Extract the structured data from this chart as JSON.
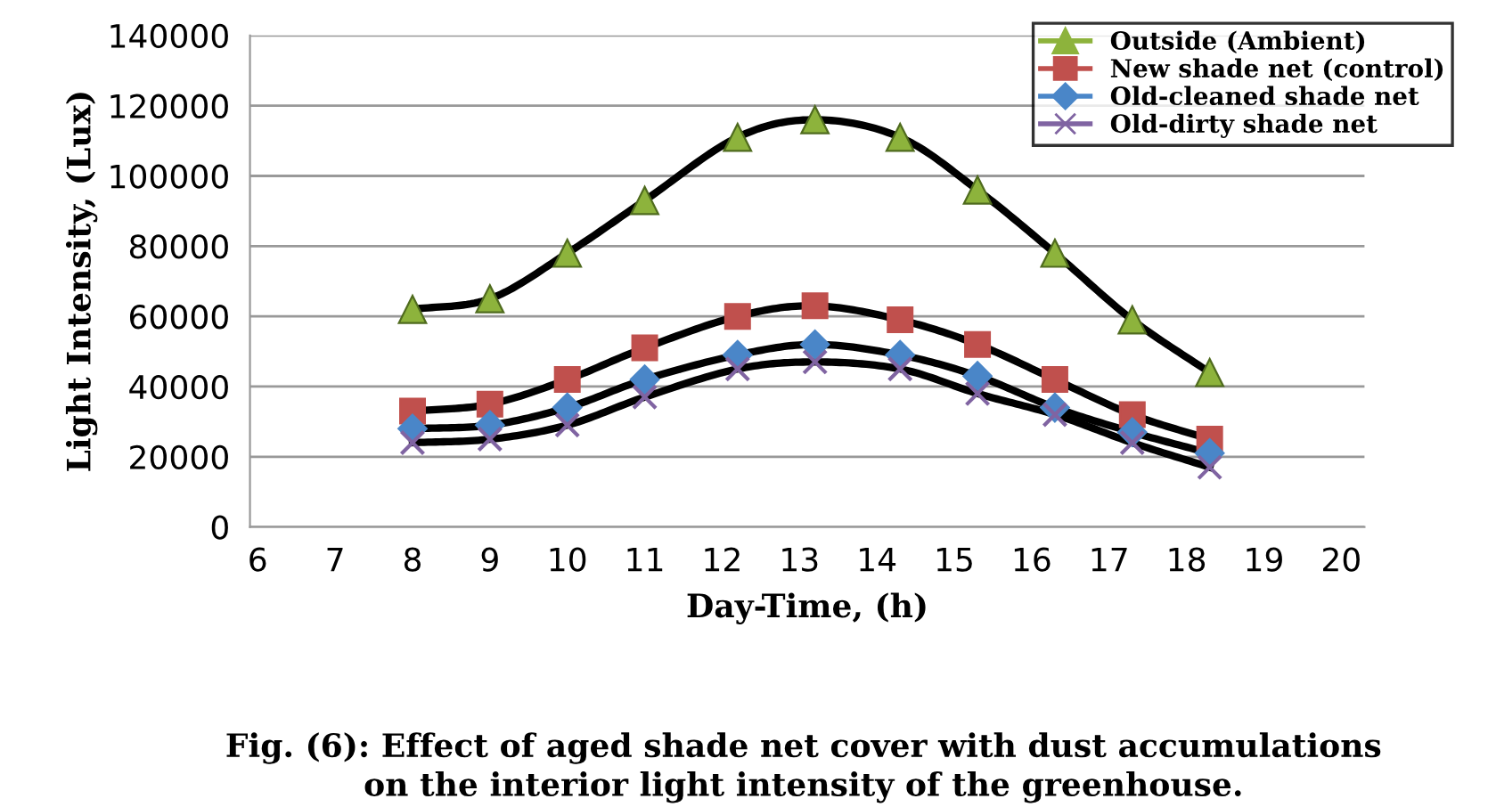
{
  "chart_data": {
    "type": "line",
    "xlabel": "Day-Time, (h)",
    "ylabel": "Light Intensity, (Lux)",
    "annotations": [
      "Fig. (6): Effect of aged shade net cover with dust accumulations\non the interior light intensity of the greenhouse."
    ],
    "x": [
      8,
      9,
      10,
      11,
      12.2,
      13.2,
      14.3,
      15.3,
      16.3,
      17.3,
      18.3
    ],
    "series": [
      {
        "name": "Outside (Ambient)",
        "color": "#8db33c",
        "marker": "triangle",
        "values": [
          62000,
          65000,
          78000,
          93000,
          111000,
          116000,
          111000,
          96000,
          78000,
          59000,
          44000
        ]
      },
      {
        "name": "New shade net (control)",
        "color": "#c0504d",
        "marker": "square",
        "values": [
          33000,
          35000,
          42000,
          51000,
          60000,
          63000,
          59000,
          52000,
          42000,
          32000,
          25000
        ]
      },
      {
        "name": "Old-cleaned shade net",
        "color": "#4a86c8",
        "marker": "diamond",
        "values": [
          28000,
          29000,
          34000,
          42000,
          49000,
          52000,
          49000,
          43000,
          34000,
          27000,
          21000
        ]
      },
      {
        "name": "Old-dirty shade net",
        "color": "#8064a2",
        "marker": "cross",
        "values": [
          24000,
          25000,
          29000,
          37000,
          45000,
          47000,
          45000,
          38000,
          32000,
          24000,
          17000
        ]
      }
    ],
    "xlim": [
      5.9,
      20.3
    ],
    "xticks": [
      6,
      7,
      8,
      9,
      10,
      11,
      12,
      13,
      14,
      15,
      16,
      17,
      18,
      19,
      20
    ],
    "ylim": [
      0,
      140000
    ],
    "yticks": [
      0,
      20000,
      40000,
      60000,
      80000,
      100000,
      120000,
      140000
    ],
    "grid": "y",
    "legend": "top right",
    "line_style": "solid"
  }
}
